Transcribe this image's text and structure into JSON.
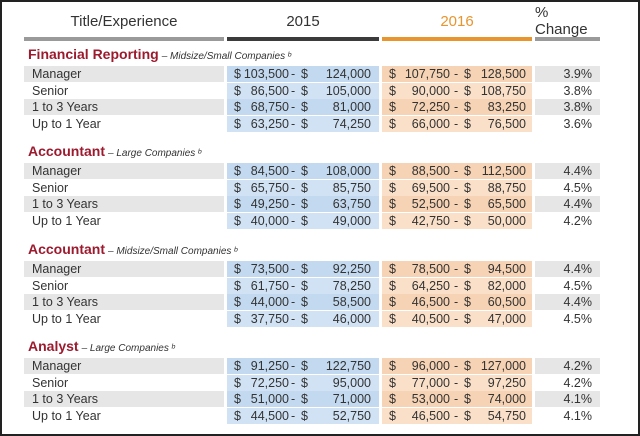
{
  "header": {
    "title": "Title/Experience",
    "year_2015": "2015",
    "year_2016": "2016",
    "pct_change": "% Change"
  },
  "colors": {
    "accent_2016": "#e8952f",
    "section_title": "#9c1a2e",
    "bar_2015": "#3b3b3b"
  },
  "sections": [
    {
      "title": "Financial Reporting",
      "subtitle": "– Midsize/Small Companies ᵇ",
      "rows": [
        {
          "label": "Manager",
          "y2015_low": "103,500",
          "y2015_high": "124,000",
          "y2016_low": "107,750",
          "y2016_high": "128,500",
          "change": "3.9%"
        },
        {
          "label": "Senior",
          "y2015_low": "86,500",
          "y2015_high": "105,000",
          "y2016_low": "90,000",
          "y2016_high": "108,750",
          "change": "3.8%"
        },
        {
          "label": "1 to 3 Years",
          "y2015_low": "68,750",
          "y2015_high": "81,000",
          "y2016_low": "72,250",
          "y2016_high": "83,250",
          "change": "3.8%"
        },
        {
          "label": "Up to 1 Year",
          "y2015_low": "63,250",
          "y2015_high": "74,250",
          "y2016_low": "66,000",
          "y2016_high": "76,500",
          "change": "3.6%"
        }
      ]
    },
    {
      "title": "Accountant",
      "subtitle": "– Large Companies ᵇ",
      "rows": [
        {
          "label": "Manager",
          "y2015_low": "84,500",
          "y2015_high": "108,000",
          "y2016_low": "88,500",
          "y2016_high": "112,500",
          "change": "4.4%"
        },
        {
          "label": "Senior",
          "y2015_low": "65,750",
          "y2015_high": "85,750",
          "y2016_low": "69,500",
          "y2016_high": "88,750",
          "change": "4.5%"
        },
        {
          "label": "1 to 3 Years",
          "y2015_low": "49,250",
          "y2015_high": "63,750",
          "y2016_low": "52,500",
          "y2016_high": "65,500",
          "change": "4.4%"
        },
        {
          "label": "Up to 1 Year",
          "y2015_low": "40,000",
          "y2015_high": "49,000",
          "y2016_low": "42,750",
          "y2016_high": "50,000",
          "change": "4.2%"
        }
      ]
    },
    {
      "title": "Accountant",
      "subtitle": "– Midsize/Small Companies ᵇ",
      "rows": [
        {
          "label": "Manager",
          "y2015_low": "73,500",
          "y2015_high": "92,250",
          "y2016_low": "78,500",
          "y2016_high": "94,500",
          "change": "4.4%"
        },
        {
          "label": "Senior",
          "y2015_low": "61,750",
          "y2015_high": "78,250",
          "y2016_low": "64,250",
          "y2016_high": "82,000",
          "change": "4.5%"
        },
        {
          "label": "1 to 3 Years",
          "y2015_low": "44,000",
          "y2015_high": "58,500",
          "y2016_low": "46,500",
          "y2016_high": "60,500",
          "change": "4.4%"
        },
        {
          "label": "Up to 1 Year",
          "y2015_low": "37,750",
          "y2015_high": "46,000",
          "y2016_low": "40,500",
          "y2016_high": "47,000",
          "change": "4.5%"
        }
      ]
    },
    {
      "title": "Analyst",
      "subtitle": "– Large Companies ᵇ",
      "rows": [
        {
          "label": "Manager",
          "y2015_low": "91,250",
          "y2015_high": "122,750",
          "y2016_low": "96,000",
          "y2016_high": "127,000",
          "change": "4.2%"
        },
        {
          "label": "Senior",
          "y2015_low": "72,250",
          "y2015_high": "95,000",
          "y2016_low": "77,000",
          "y2016_high": "97,250",
          "change": "4.2%"
        },
        {
          "label": "1 to 3 Years",
          "y2015_low": "51,000",
          "y2015_high": "71,000",
          "y2016_low": "53,000",
          "y2016_high": "74,000",
          "change": "4.1%"
        },
        {
          "label": "Up to 1 Year",
          "y2015_low": "44,500",
          "y2015_high": "52,750",
          "y2016_low": "46,500",
          "y2016_high": "54,750",
          "change": "4.1%"
        }
      ]
    }
  ]
}
